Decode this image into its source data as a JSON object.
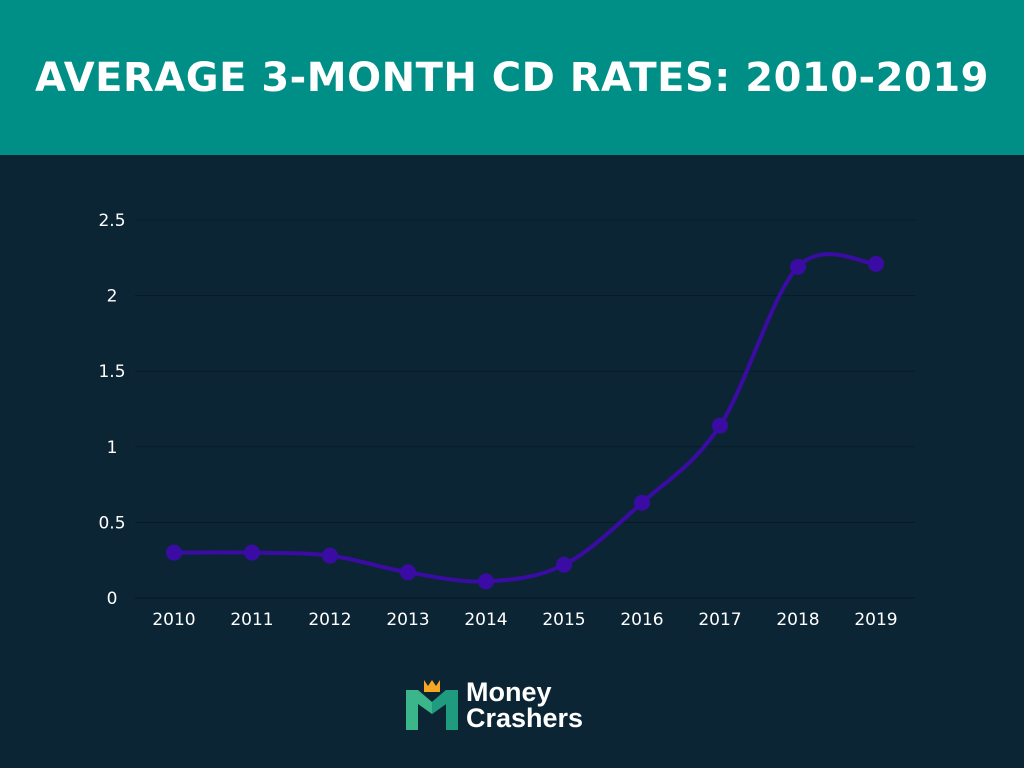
{
  "header": {
    "title": "AVERAGE 3-MONTH CD RATES: 2010-2019"
  },
  "chart_data": {
    "type": "line",
    "title": "AVERAGE 3-MONTH CD RATES: 2010-2019",
    "xlabel": "",
    "ylabel": "",
    "categories": [
      "2010",
      "2011",
      "2012",
      "2013",
      "2014",
      "2015",
      "2016",
      "2017",
      "2018",
      "2019"
    ],
    "values": [
      0.3,
      0.3,
      0.28,
      0.17,
      0.11,
      0.22,
      0.63,
      1.14,
      2.19,
      2.21
    ],
    "ylim": [
      0,
      2.5
    ],
    "yticks": [
      "0",
      "0.5",
      "1",
      "1.5",
      "2",
      "2.5"
    ],
    "grid": true,
    "smooth": true,
    "line_color": "#3a0ca3"
  },
  "logo": {
    "line1": "Money",
    "line2": "Crashers"
  },
  "colors": {
    "header": "#008f87",
    "background": "#0c2535",
    "logo_green": "#3bb58a",
    "logo_orange": "#f5a623"
  }
}
